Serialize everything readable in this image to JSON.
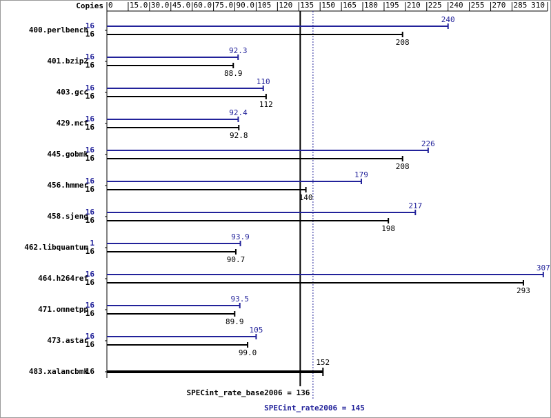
{
  "chart_data": {
    "type": "spec-bar",
    "copies_label": "Copies",
    "categories": [
      "400.perlbench",
      "401.bzip2",
      "403.gcc",
      "429.mcf",
      "445.gobmk",
      "456.hmmer",
      "458.sjeng",
      "462.libquantum",
      "464.h264ref",
      "471.omnetpp",
      "473.astar",
      "483.xalancbmk"
    ],
    "series": [
      {
        "color": "#22229a",
        "copies": [
          16,
          16,
          16,
          16,
          16,
          16,
          16,
          1,
          16,
          16,
          16,
          null
        ],
        "values": [
          240,
          92.3,
          110,
          92.4,
          226,
          179,
          217,
          93.9,
          307,
          93.5,
          105,
          null
        ]
      },
      {
        "color": "#000000",
        "copies": [
          16,
          16,
          16,
          16,
          16,
          16,
          16,
          16,
          16,
          16,
          16,
          16
        ],
        "values": [
          208,
          88.9,
          112,
          92.8,
          208,
          140,
          198,
          90.7,
          293,
          89.9,
          99,
          152
        ],
        "value_labels": [
          "208",
          "88.9",
          "112",
          "92.8",
          "208",
          "140",
          "198",
          "90.7",
          "293",
          "89.9",
          "99.0",
          "152"
        ]
      }
    ],
    "xlim": [
      0,
      310
    ],
    "xticks": [
      0,
      {
        "value": 15,
        "label": "15.0"
      },
      {
        "value": 30,
        "label": "30.0"
      },
      {
        "value": 45,
        "label": "45.0"
      },
      {
        "value": 60,
        "label": "60.0"
      },
      {
        "value": 75,
        "label": "75.0"
      },
      {
        "value": 90,
        "label": "90.0"
      },
      105,
      120,
      135,
      150,
      165,
      180,
      195,
      210,
      225,
      240,
      255,
      270,
      285,
      310
    ],
    "reference_lines": [
      {
        "label": "SPECint_rate_base2006 = 136",
        "value": 136,
        "color": "#000000"
      },
      {
        "label": "SPECint_rate2006 = 145",
        "value": 145,
        "color": "#22229a"
      }
    ]
  }
}
